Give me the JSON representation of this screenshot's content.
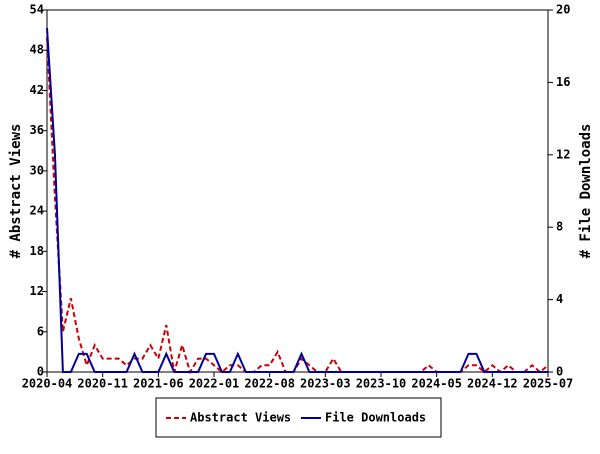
{
  "chart_data": {
    "type": "line",
    "categories": [
      "2020-04",
      null,
      null,
      null,
      null,
      null,
      null,
      "2020-11",
      null,
      null,
      null,
      null,
      null,
      null,
      "2021-06",
      null,
      null,
      null,
      null,
      null,
      null,
      "2022-01",
      null,
      null,
      null,
      null,
      null,
      null,
      "2022-08",
      null,
      null,
      null,
      null,
      null,
      null,
      "2023-03",
      null,
      null,
      null,
      null,
      null,
      null,
      "2023-10",
      null,
      null,
      null,
      null,
      null,
      null,
      "2024-05",
      null,
      null,
      null,
      null,
      null,
      null,
      "2024-12",
      null,
      null,
      null,
      null,
      null,
      null,
      "2025-07"
    ],
    "ylabel": "# Abstract Views",
    "y2label": "# File Downloads",
    "ylim": [
      0,
      54
    ],
    "yticks": [
      0,
      6,
      12,
      18,
      24,
      30,
      36,
      42,
      48,
      54
    ],
    "y2lim": [
      0,
      20
    ],
    "y2ticks": [
      0,
      4,
      8,
      12,
      16,
      20
    ],
    "legend": "bottom",
    "series": [
      {
        "name": "Abstract Views",
        "color": "#cc0000",
        "style": "dashed",
        "values": [
          50,
          26,
          6,
          11,
          5,
          1,
          4,
          2,
          2,
          2,
          1,
          2,
          2,
          4,
          2,
          7,
          0,
          4,
          0,
          2,
          2,
          1,
          0,
          1,
          1,
          0,
          0,
          1,
          1,
          3,
          0,
          0,
          2,
          1,
          0,
          0,
          2,
          0,
          0,
          0,
          0,
          0,
          0,
          0,
          0,
          0,
          0,
          0,
          1,
          0,
          0,
          0,
          0,
          1,
          1,
          0,
          1,
          0,
          1,
          0,
          0,
          1,
          0,
          1
        ]
      },
      {
        "name": "File Downloads",
        "color": "#000099",
        "style": "solid",
        "axis": "y2",
        "values": [
          19,
          12,
          0,
          0,
          1,
          1,
          0,
          0,
          0,
          0,
          0,
          1,
          0,
          0,
          0,
          1,
          0,
          0,
          0,
          0,
          1,
          1,
          0,
          0,
          1,
          0,
          0,
          0,
          0,
          0,
          0,
          0,
          1,
          0,
          0,
          0,
          0,
          0,
          0,
          0,
          0,
          0,
          0,
          0,
          0,
          0,
          0,
          0,
          0,
          0,
          0,
          0,
          0,
          1,
          1,
          0,
          0,
          0,
          0,
          0,
          0,
          0,
          0,
          0
        ]
      }
    ]
  }
}
